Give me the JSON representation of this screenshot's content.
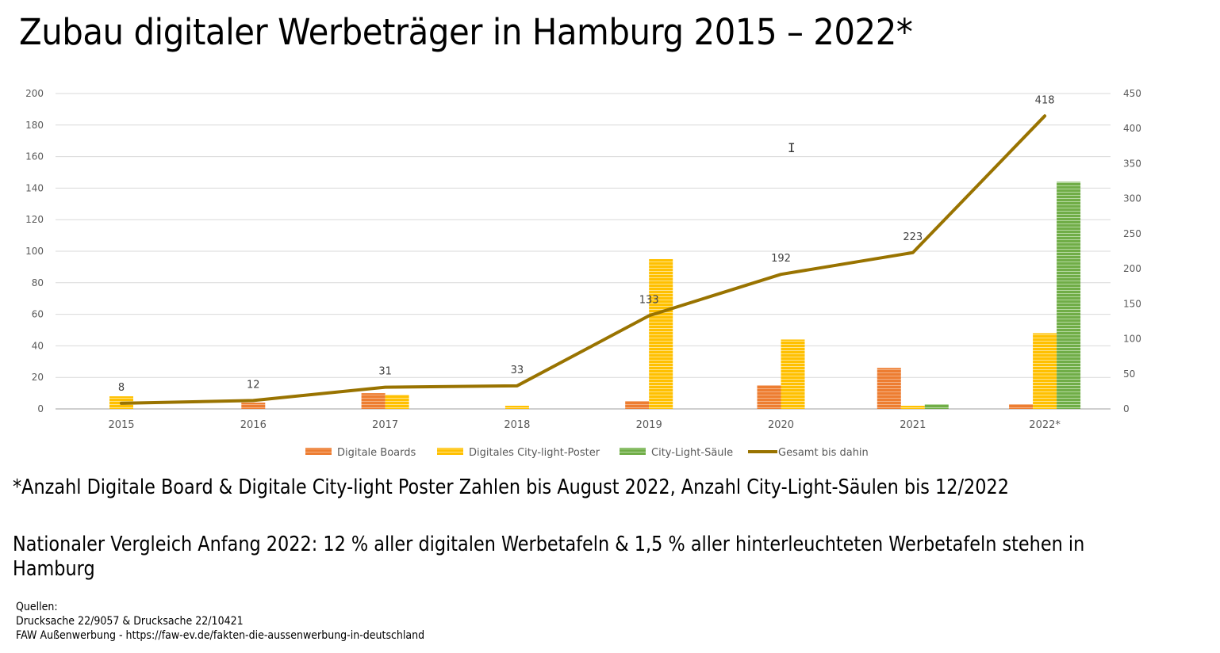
{
  "title": "Zubau digitaler Werbeträger in Hamburg 2015 – 2022*",
  "notes": {
    "footnote": "*Anzahl Digitale Board & Digitale City-light Poster Zahlen bis August 2022, Anzahl City-Light-Säulen bis 12/2022",
    "comparison_line1": "Nationaler Vergleich Anfang 2022: 12 % aller digitalen Werbetafeln & 1,5 % aller hinterleuchteten Werbetafeln stehen in",
    "comparison_line2": "Hamburg"
  },
  "sources": {
    "heading": "Quellen:",
    "items": [
      "Drucksache 22/9057 & Drucksache 22/10421",
      "FAW Außenwerbung - https://faw-ev.de/fakten-die-aussenwerbung-in-deutschland"
    ]
  },
  "cursor_icon": "text-cursor-icon",
  "chart_data": {
    "type": "bar",
    "title": "Zubau digitaler Werbeträger in Hamburg 2015 – 2022*",
    "xlabel": "",
    "ylabel": "",
    "categories": [
      "2015",
      "2016",
      "2017",
      "2018",
      "2019",
      "2020",
      "2021",
      "2022*"
    ],
    "ylim": [
      0,
      200
    ],
    "yticks": [
      0,
      20,
      40,
      60,
      80,
      100,
      120,
      140,
      160,
      180,
      200
    ],
    "y2lim": [
      0,
      450
    ],
    "y2ticks": [
      0,
      50,
      100,
      150,
      200,
      250,
      300,
      350,
      400,
      450
    ],
    "grid": true,
    "legend_position": "bottom",
    "series": [
      {
        "name": "Digitale Boards",
        "type": "bar",
        "axis": "left",
        "color": "#ED7D31",
        "values": [
          0,
          4,
          10,
          0,
          5,
          15,
          26,
          3
        ]
      },
      {
        "name": "Digitales City-light-Poster",
        "type": "bar",
        "axis": "left",
        "color": "#FFC000",
        "values": [
          8,
          0,
          9,
          2,
          95,
          44,
          2,
          48
        ]
      },
      {
        "name": "City-Light-Säule",
        "type": "bar",
        "axis": "left",
        "color": "#70AD47",
        "values": [
          0,
          0,
          0,
          0,
          0,
          0,
          3,
          144
        ]
      },
      {
        "name": "Gesamt bis dahin",
        "type": "line",
        "axis": "right",
        "color": "#997300",
        "values": [
          8,
          12,
          31,
          33,
          133,
          192,
          223,
          418
        ],
        "data_labels": [
          "8",
          "12",
          "31",
          "33",
          "133",
          "192",
          "223",
          "418"
        ]
      }
    ]
  }
}
